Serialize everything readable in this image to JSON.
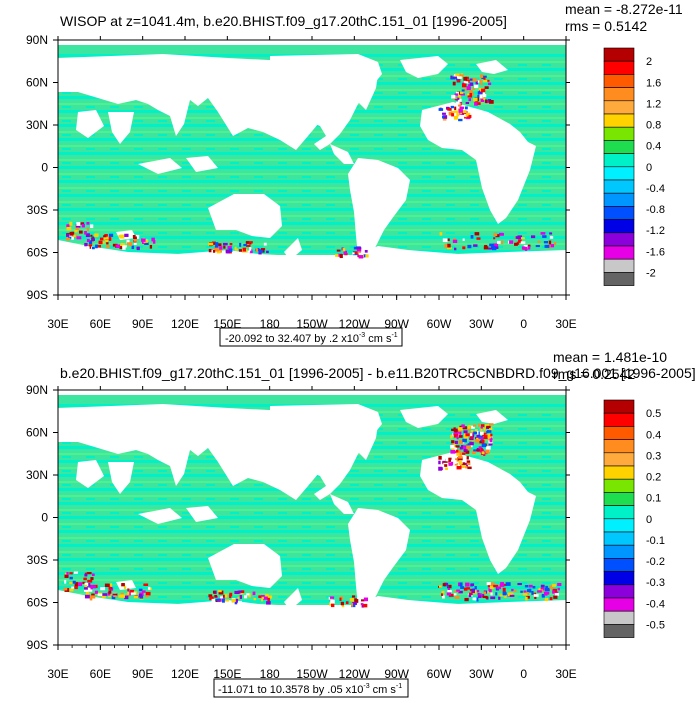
{
  "chart_data": [
    {
      "type": "heatmap",
      "title": "WISOP at z=1041.4m, b.e20.BHIST.f09_g17.20thC.151_01 [1996-2005]",
      "stats": {
        "mean": "mean = -8.272e-11",
        "rms": "rms = 0.5142"
      },
      "x_ticks": [
        "30E",
        "60E",
        "90E",
        "120E",
        "150E",
        "180",
        "150W",
        "120W",
        "90W",
        "60W",
        "30W",
        "0",
        "30E"
      ],
      "y_ticks": [
        "90N",
        "60N",
        "30N",
        "0",
        "30S",
        "60S",
        "90S"
      ],
      "range_label": {
        "prefix": "-20.092 to 32.407 by .2 x10",
        "exp": "-3",
        "units": " cm s",
        "units_exp": "-1"
      },
      "colorbar_labels": [
        "2",
        "1.6",
        "1.2",
        "0.8",
        "0.4",
        "0",
        "-0.4",
        "-0.8",
        "-1.2",
        "-1.6",
        "-2"
      ],
      "colorbar_colors": [
        "#b40000",
        "#ff0000",
        "#ff5a00",
        "#ff8c1e",
        "#ffaa3c",
        "#ffd200",
        "#78e600",
        "#1ede50",
        "#00f0c8",
        "#00f0ff",
        "#00c8ff",
        "#0096ff",
        "#0050ff",
        "#0000e6",
        "#8c00dc",
        "#e600e6",
        "#c8c8c8",
        "#646464"
      ]
    },
    {
      "type": "heatmap",
      "title": "b.e20.BHIST.f09_g17.20thC.151_01 [1996-2005] - b.e11.B20TRC5CNBDRD.f09_g16.001 [1996-2005]",
      "stats": {
        "mean": "mean = 1.481e-10",
        "rms": "rms = 0.2542"
      },
      "x_ticks": [
        "30E",
        "60E",
        "90E",
        "120E",
        "150E",
        "180",
        "150W",
        "120W",
        "90W",
        "60W",
        "30W",
        "0",
        "30E"
      ],
      "y_ticks": [
        "90N",
        "60N",
        "30N",
        "0",
        "30S",
        "60S",
        "90S"
      ],
      "range_label": {
        "prefix": "-11.071 to 10.3578 by .05 x10",
        "exp": "-3",
        "units": " cm s",
        "units_exp": "-1"
      },
      "colorbar_labels": [
        "0.5",
        "0.4",
        "0.3",
        "0.2",
        "0.1",
        "0",
        "-0.1",
        "-0.2",
        "-0.3",
        "-0.4",
        "-0.5"
      ],
      "colorbar_colors": [
        "#b40000",
        "#ff0000",
        "#ff5a00",
        "#ff8c1e",
        "#ffaa3c",
        "#ffd200",
        "#78e600",
        "#1ede50",
        "#00f0c8",
        "#00f0ff",
        "#00c8ff",
        "#0096ff",
        "#0050ff",
        "#0000e6",
        "#8c00dc",
        "#e600e6",
        "#c8c8c8",
        "#646464"
      ]
    }
  ],
  "colors": {
    "ocean_base": "#3ce6a0",
    "ocean_stripe": "#00f0c8",
    "ocean_light": "#50f08c",
    "land": "#ffffff"
  }
}
